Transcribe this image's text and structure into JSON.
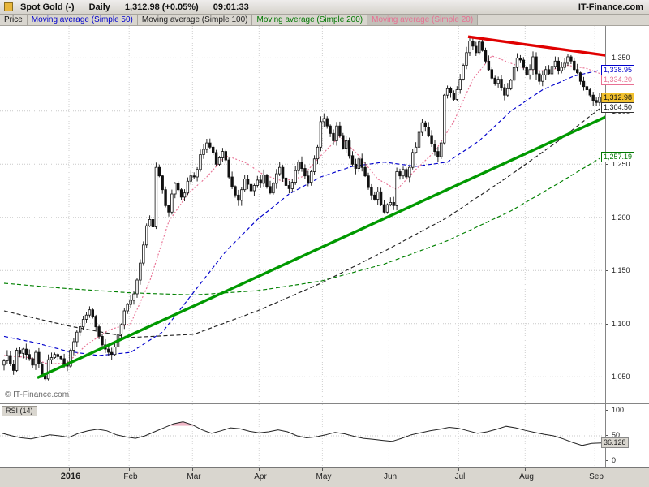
{
  "header": {
    "instrument": "Spot Gold (-)",
    "timeframe": "Daily",
    "quote": "1,312.98 (+0.05%)",
    "time": "09:01:33",
    "brand": "IT-Finance.com"
  },
  "tabs": [
    {
      "label": "Price",
      "color": "#111111",
      "pressed": false
    },
    {
      "label": "Moving average (Simple 50)",
      "color": "#0000cc",
      "pressed": false
    },
    {
      "label": "Moving average (Simple 100)",
      "color": "#222222",
      "pressed": false
    },
    {
      "label": "Moving average (Simple 200)",
      "color": "#007700",
      "pressed": false
    },
    {
      "label": "Moving average (Simple 20)",
      "color": "#e87093",
      "pressed": true
    }
  ],
  "watermark": "© IT-Finance.com",
  "price_axis": {
    "ticks": [
      {
        "value": 1350,
        "label": "1,350"
      },
      {
        "value": 1300,
        "label": "1,300"
      },
      {
        "value": 1250,
        "label": "1,250"
      },
      {
        "value": 1200,
        "label": "1,200"
      },
      {
        "value": 1150,
        "label": "1,150"
      },
      {
        "value": 1100,
        "label": "1,100"
      },
      {
        "value": 1050,
        "label": "1,050"
      }
    ],
    "flags": [
      {
        "label": "1,338.95",
        "value": 1338.95,
        "fg": "#0000cc",
        "bg": "#ffffff",
        "border": "#0000cc",
        "series": "ma50"
      },
      {
        "label": "1,334.20",
        "value": 1334.2,
        "fg": "#e87093",
        "bg": "#ffffff",
        "border": "#e87093",
        "series": "ma20"
      },
      {
        "label": "1,312.98",
        "value": 1312.98,
        "fg": "#111111",
        "bg": "#f2c12e",
        "border": "#8a6d1f",
        "series": "last-price"
      },
      {
        "label": "1,304.50",
        "value": 1304.5,
        "fg": "#111111",
        "bg": "#ffffff",
        "border": "#333333",
        "series": "ma100"
      },
      {
        "label": "1,257.19",
        "value": 1257.19,
        "fg": "#007700",
        "bg": "#ffffff",
        "border": "#007700",
        "series": "ma200"
      }
    ]
  },
  "rsi": {
    "label": "RSI (14)",
    "ticks": [
      100,
      50,
      0
    ],
    "current": "36.128",
    "current_value": 36.128,
    "values": [
      55,
      50,
      46,
      44,
      48,
      52,
      50,
      47,
      55,
      60,
      63,
      60,
      52,
      48,
      45,
      50,
      58,
      66,
      74,
      78,
      72,
      62,
      55,
      60,
      66,
      64,
      59,
      56,
      58,
      62,
      58,
      50,
      46,
      48,
      52,
      57,
      54,
      49,
      45,
      43,
      41,
      39,
      45,
      52,
      56,
      60,
      63,
      67,
      65,
      60,
      55,
      58,
      63,
      69,
      66,
      61,
      57,
      53,
      50,
      44,
      37,
      31,
      35,
      36
    ]
  },
  "time_axis": {
    "labels": [
      "2016",
      "Feb",
      "Mar",
      "Apr",
      "May",
      "Jun",
      "Jul",
      "Aug",
      "Sep"
    ]
  },
  "chart_data": {
    "type": "candlestick",
    "title": "Spot Gold (-) Daily",
    "ylim": [
      1028,
      1377
    ],
    "grid": true,
    "closes": [
      1065,
      1070,
      1062,
      1056,
      1075,
      1072,
      1076,
      1071,
      1067,
      1061,
      1073,
      1062,
      1051,
      1048,
      1066,
      1068,
      1071,
      1069,
      1067,
      1061,
      1060,
      1075,
      1083,
      1092,
      1097,
      1104,
      1108,
      1113,
      1107,
      1097,
      1088,
      1080,
      1076,
      1073,
      1071,
      1078,
      1090,
      1099,
      1112,
      1118,
      1122,
      1128,
      1141,
      1157,
      1174,
      1192,
      1198,
      1191,
      1247,
      1239,
      1226,
      1211,
      1205,
      1222,
      1232,
      1226,
      1219,
      1223,
      1234,
      1239,
      1238,
      1245,
      1259,
      1264,
      1270,
      1266,
      1261,
      1250,
      1256,
      1262,
      1254,
      1238,
      1229,
      1221,
      1216,
      1226,
      1236,
      1231,
      1225,
      1230,
      1235,
      1232,
      1240,
      1229,
      1223,
      1232,
      1241,
      1247,
      1237,
      1230,
      1227,
      1233,
      1244,
      1252,
      1246,
      1239,
      1233,
      1243,
      1255,
      1266,
      1290,
      1293,
      1286,
      1279,
      1272,
      1286,
      1277,
      1265,
      1272,
      1258,
      1250,
      1246,
      1255,
      1247,
      1239,
      1228,
      1221,
      1217,
      1224,
      1212,
      1205,
      1212,
      1214,
      1211,
      1243,
      1239,
      1245,
      1238,
      1247,
      1261,
      1266,
      1280,
      1289,
      1285,
      1277,
      1269,
      1262,
      1257,
      1270,
      1315,
      1321,
      1317,
      1311,
      1320,
      1330,
      1343,
      1355,
      1366,
      1361,
      1355,
      1365,
      1357,
      1347,
      1339,
      1331,
      1326,
      1330,
      1322,
      1315,
      1321,
      1329,
      1341,
      1350,
      1348,
      1341,
      1334,
      1339,
      1351,
      1335,
      1328,
      1334,
      1339,
      1335,
      1342,
      1347,
      1338,
      1341,
      1345,
      1351,
      1347,
      1339,
      1336,
      1328,
      1323,
      1320,
      1315,
      1310,
      1308,
      1313
    ],
    "month_start_indices": [
      0,
      21,
      40,
      60,
      81,
      101,
      122,
      144,
      165,
      187
    ],
    "moving_averages": {
      "ma20": {
        "name": "Moving average (Simple 20)",
        "color": "#e87093",
        "dash": "2,2",
        "anchors": [
          [
            0,
            1070
          ],
          [
            8,
            1068
          ],
          [
            14,
            1062
          ],
          [
            20,
            1063
          ],
          [
            26,
            1080
          ],
          [
            33,
            1094
          ],
          [
            40,
            1100
          ],
          [
            46,
            1140
          ],
          [
            52,
            1196
          ],
          [
            58,
            1222
          ],
          [
            64,
            1238
          ],
          [
            70,
            1258
          ],
          [
            76,
            1252
          ],
          [
            82,
            1240
          ],
          [
            88,
            1234
          ],
          [
            94,
            1238
          ],
          [
            100,
            1258
          ],
          [
            106,
            1276
          ],
          [
            112,
            1258
          ],
          [
            118,
            1236
          ],
          [
            124,
            1226
          ],
          [
            130,
            1245
          ],
          [
            136,
            1262
          ],
          [
            142,
            1290
          ],
          [
            148,
            1330
          ],
          [
            154,
            1352
          ],
          [
            160,
            1345
          ],
          [
            166,
            1338
          ],
          [
            172,
            1338
          ],
          [
            178,
            1343
          ],
          [
            184,
            1340
          ],
          [
            189,
            1334.2
          ]
        ]
      },
      "ma50": {
        "name": "Moving average (Simple 50)",
        "color": "#0000cc",
        "dash": "5,3",
        "anchors": [
          [
            0,
            1088
          ],
          [
            10,
            1082
          ],
          [
            20,
            1074
          ],
          [
            30,
            1070
          ],
          [
            40,
            1073
          ],
          [
            50,
            1092
          ],
          [
            60,
            1130
          ],
          [
            70,
            1168
          ],
          [
            80,
            1198
          ],
          [
            90,
            1222
          ],
          [
            100,
            1238
          ],
          [
            110,
            1248
          ],
          [
            120,
            1252
          ],
          [
            130,
            1248
          ],
          [
            140,
            1252
          ],
          [
            150,
            1272
          ],
          [
            160,
            1300
          ],
          [
            170,
            1320
          ],
          [
            180,
            1333
          ],
          [
            189,
            1338.95
          ]
        ]
      },
      "ma100": {
        "name": "Moving average (Simple 100)",
        "color": "#222222",
        "dash": "5,3",
        "anchors": [
          [
            0,
            1112
          ],
          [
            20,
            1098
          ],
          [
            40,
            1087
          ],
          [
            60,
            1090
          ],
          [
            80,
            1112
          ],
          [
            100,
            1138
          ],
          [
            120,
            1168
          ],
          [
            140,
            1200
          ],
          [
            160,
            1240
          ],
          [
            175,
            1272
          ],
          [
            189,
            1304.5
          ]
        ]
      },
      "ma200": {
        "name": "Moving average (Simple 200)",
        "color": "#008000",
        "dash": "5,3",
        "anchors": [
          [
            0,
            1138
          ],
          [
            20,
            1133
          ],
          [
            40,
            1129
          ],
          [
            60,
            1127
          ],
          [
            80,
            1131
          ],
          [
            100,
            1140
          ],
          [
            120,
            1156
          ],
          [
            140,
            1178
          ],
          [
            160,
            1206
          ],
          [
            175,
            1232
          ],
          [
            189,
            1257.19
          ]
        ]
      }
    },
    "trendlines": [
      {
        "name": "support-trendline",
        "color": "#009900",
        "width": 3.4,
        "from": [
          10.5,
          1049
        ],
        "to": [
          191,
          1296
        ]
      },
      {
        "name": "resistance-trendline",
        "color": "#e00000",
        "width": 3.4,
        "from": [
          146.5,
          1370
        ],
        "to": [
          191,
          1352
        ]
      }
    ],
    "rsi_overbought_fill": "#efb6c6"
  }
}
